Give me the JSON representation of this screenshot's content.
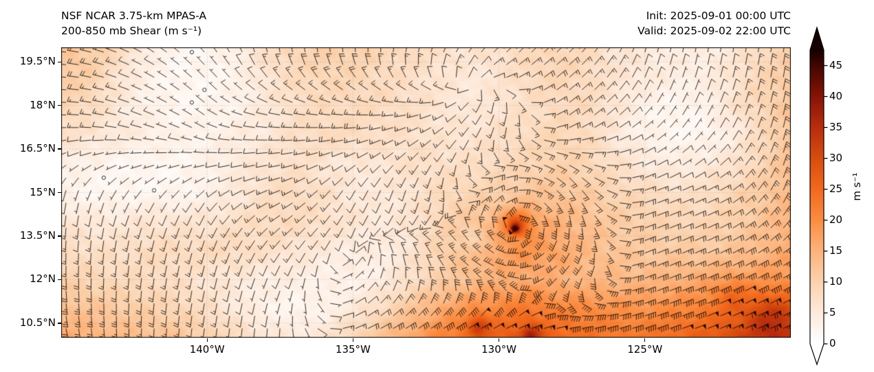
{
  "header": {
    "title_line1": "NSF NCAR 3.75-km MPAS-A",
    "title_line2": "200-850 mb Shear (m s⁻¹)",
    "init_label": "Init: 2025-09-01 00:00 UTC",
    "valid_label": "Valid: 2025-09-02 22:00 UTC"
  },
  "chart_data": {
    "type": "heatmap",
    "title": "NSF NCAR 3.75-km MPAS-A 200-850 mb Shear (m s⁻¹)",
    "field": "200-850 mb vertical wind shear magnitude with shear-vector wind barbs",
    "extent": {
      "lon_min": -145,
      "lon_max": -120,
      "lat_min": 10,
      "lat_max": 20
    },
    "lat_ticks": [
      {
        "label": "19.5°N",
        "value": 19.5
      },
      {
        "label": "18°N",
        "value": 18
      },
      {
        "label": "16.5°N",
        "value": 16.5
      },
      {
        "label": "15°N",
        "value": 15
      },
      {
        "label": "13.5°N",
        "value": 13.5
      },
      {
        "label": "12°N",
        "value": 12
      },
      {
        "label": "10.5°N",
        "value": 10.5
      }
    ],
    "lon_ticks": [
      {
        "label": "140°W",
        "value": -140
      },
      {
        "label": "135°W",
        "value": -135
      },
      {
        "label": "130°W",
        "value": -130
      },
      {
        "label": "125°W",
        "value": -125
      }
    ],
    "colorbar": {
      "label": "m s⁻¹",
      "ticks": [
        0,
        5,
        10,
        15,
        20,
        25,
        30,
        35,
        40,
        45
      ],
      "vmin": 0,
      "vmax": 47.5,
      "extend": "both",
      "stops": [
        [
          0,
          "#ffffff"
        ],
        [
          5,
          "#fdeadb"
        ],
        [
          10,
          "#fbd2ad"
        ],
        [
          15,
          "#fcb37b"
        ],
        [
          20,
          "#fb8c41"
        ],
        [
          25,
          "#f2691d"
        ],
        [
          30,
          "#d84c0e"
        ],
        [
          35,
          "#b92d0d"
        ],
        [
          40,
          "#871307"
        ],
        [
          45,
          "#420601"
        ],
        [
          47.5,
          "#160000"
        ]
      ]
    },
    "barb_increments": {
      "half": 2.5,
      "full": 5,
      "flag": 25,
      "calm": 2.5
    },
    "shear_grid": {
      "lon0": -145,
      "dlon": 1,
      "lat0": 20,
      "dlat": -1,
      "values": [
        [
          12,
          11,
          8,
          4,
          2,
          2,
          4,
          7,
          9,
          10,
          10,
          9,
          8,
          7,
          6,
          7,
          8,
          9,
          8,
          6,
          5,
          4,
          4,
          5,
          8,
          10
        ],
        [
          11,
          10,
          6,
          3,
          2,
          2,
          3,
          6,
          8,
          9,
          9,
          8,
          7,
          6,
          5,
          6,
          8,
          9,
          8,
          6,
          5,
          4,
          4,
          6,
          9,
          11
        ],
        [
          9,
          8,
          5,
          3,
          2,
          2,
          3,
          5,
          7,
          8,
          8,
          8,
          7,
          6,
          5,
          6,
          7,
          8,
          8,
          6,
          3,
          2,
          3,
          6,
          9,
          12
        ],
        [
          7,
          6,
          5,
          4,
          3,
          3,
          4,
          5,
          7,
          8,
          8,
          7,
          7,
          6,
          6,
          7,
          8,
          9,
          8,
          5,
          3,
          2,
          2,
          4,
          8,
          12
        ],
        [
          4,
          3,
          2,
          2,
          2,
          3,
          5,
          6,
          7,
          6,
          5,
          6,
          7,
          7,
          7,
          8,
          9,
          10,
          9,
          7,
          5,
          4,
          5,
          6,
          9,
          13
        ],
        [
          3,
          2,
          2,
          2,
          2,
          3,
          5,
          7,
          8,
          7,
          5,
          5,
          6,
          8,
          9,
          10,
          12,
          12,
          11,
          9,
          8,
          7,
          7,
          9,
          11,
          14
        ],
        [
          6,
          5,
          5,
          6,
          6,
          6,
          7,
          8,
          8,
          7,
          6,
          5,
          6,
          9,
          12,
          15,
          17,
          15,
          13,
          11,
          10,
          9,
          9,
          10,
          12,
          15
        ],
        [
          8,
          7,
          7,
          8,
          8,
          8,
          8,
          7,
          6,
          5,
          4,
          4,
          6,
          10,
          14,
          17,
          19,
          17,
          14,
          12,
          11,
          11,
          11,
          12,
          14,
          16
        ],
        [
          10,
          9,
          8,
          8,
          7,
          6,
          5,
          4,
          4,
          3,
          3,
          4,
          7,
          10,
          13,
          15,
          16,
          15,
          14,
          14,
          14,
          15,
          16,
          17,
          18,
          19
        ],
        [
          13,
          12,
          11,
          10,
          9,
          7,
          5,
          3,
          2,
          3,
          5,
          8,
          12,
          16,
          19,
          21,
          23,
          21,
          20,
          19,
          19,
          20,
          22,
          24,
          26,
          27
        ],
        [
          16,
          15,
          14,
          13,
          12,
          10,
          8,
          6,
          5,
          6,
          9,
          13,
          17,
          21,
          25,
          27,
          29,
          26,
          24,
          23,
          23,
          25,
          27,
          30,
          32,
          33
        ]
      ]
    },
    "hotspots": [
      {
        "lon": -129.4,
        "lat": 13.9,
        "amp": 14,
        "r": 0.45
      },
      {
        "lon": -129.45,
        "lat": 13.75,
        "amp": 18,
        "r": 0.15
      },
      {
        "lon": -130.8,
        "lat": 13.3,
        "amp": -4,
        "r": 0.5
      },
      {
        "lon": -130.7,
        "lat": 10.4,
        "amp": 10,
        "r": 0.35
      },
      {
        "lon": -128.9,
        "lat": 10.1,
        "amp": 10,
        "r": 0.3
      },
      {
        "lon": -122.0,
        "lat": 11.5,
        "amp": 4,
        "r": 0.6
      },
      {
        "lon": -120.7,
        "lat": 10.7,
        "amp": 6,
        "r": 0.8
      }
    ],
    "vortex_center": {
      "lon": -129.4,
      "lat": 13.9,
      "rotation": "cyclonic",
      "blend_radius_deg": 1.1
    },
    "wind_grid": {
      "lon0": -145,
      "dlon": 2.5,
      "lat0": 20,
      "dlat": -2.5,
      "u": [
        [
          1.0,
          0.8,
          0.5,
          0.1,
          0.0,
          -0.3,
          -0.7,
          -0.6,
          -0.2,
          -0.1,
          -0.15
        ],
        [
          0.9,
          0.6,
          0.3,
          0.9,
          1.0,
          0.8,
          0.3,
          -0.7,
          -0.3,
          -0.4,
          -0.2
        ],
        [
          0.1,
          0.2,
          0.2,
          0.7,
          0.4,
          0.2,
          -0.8,
          -0.5,
          -0.85,
          -0.8,
          -0.3
        ],
        [
          0.0,
          0.1,
          0.2,
          0.3,
          -0.2,
          0.3,
          0.9,
          0.6,
          -0.85,
          -0.85,
          -0.8
        ],
        [
          -0.2,
          0.0,
          0.1,
          0.0,
          -0.5,
          -0.8,
          -0.85,
          -0.9,
          -0.9,
          -0.85,
          -0.8
        ]
      ],
      "v": [
        [
          -0.1,
          -0.4,
          -0.6,
          -0.9,
          -1.0,
          -0.9,
          -0.7,
          -0.6,
          -0.8,
          -0.9,
          -1.0
        ],
        [
          0.0,
          -0.2,
          -0.2,
          -0.1,
          0.0,
          0.3,
          0.8,
          -0.5,
          -0.3,
          -0.8,
          -1.0
        ],
        [
          0.5,
          0.3,
          0.2,
          0.3,
          0.7,
          0.9,
          -0.45,
          0.85,
          -0.3,
          -0.4,
          -0.9
        ],
        [
          0.85,
          0.8,
          0.8,
          0.6,
          -0.2,
          -0.8,
          -0.4,
          0.8,
          -0.35,
          -0.4,
          -0.5
        ],
        [
          0.8,
          0.85,
          0.8,
          0.5,
          -0.2,
          -0.4,
          -0.35,
          -0.25,
          -0.3,
          -0.35,
          -0.4
        ]
      ]
    }
  }
}
